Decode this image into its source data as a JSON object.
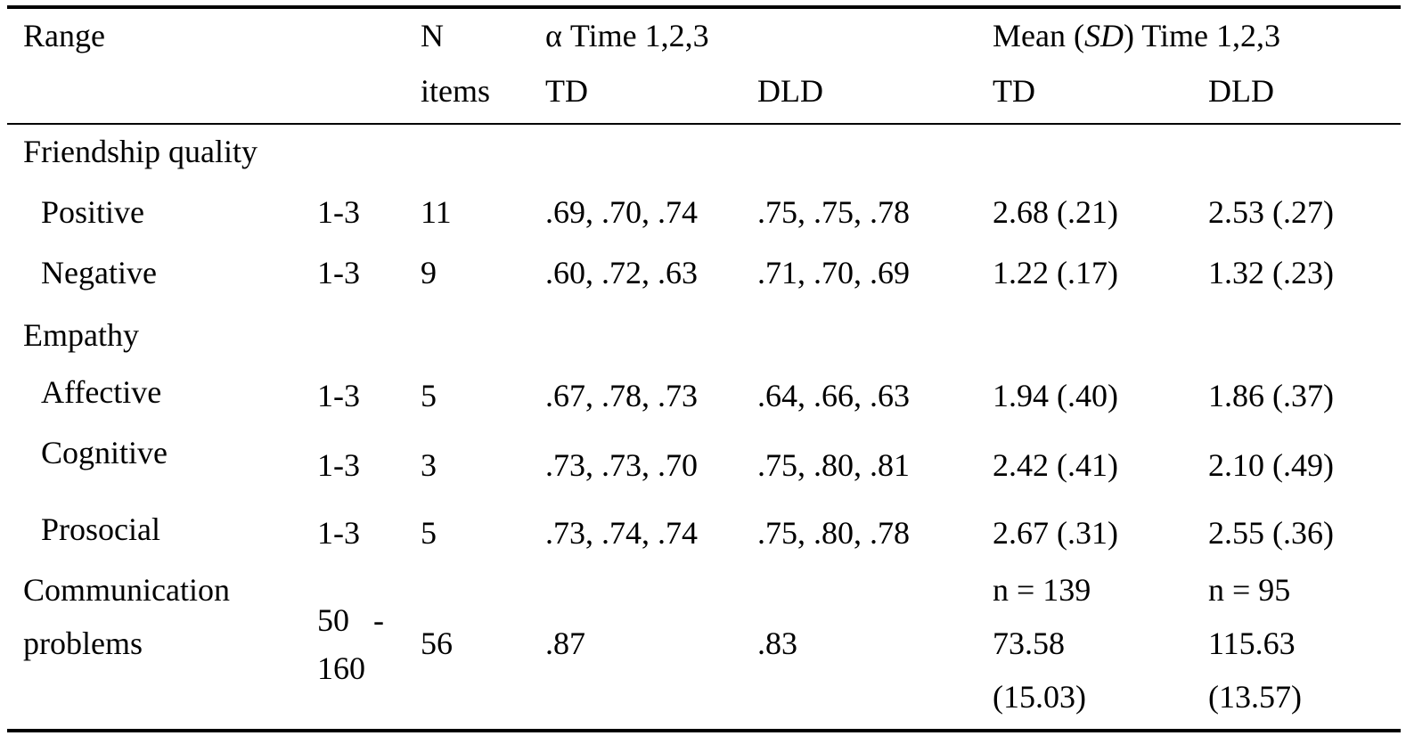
{
  "header": {
    "range": "Range",
    "n_items_line1": "N",
    "n_items_line2": "items",
    "alpha_prefix": "α Time 1,2,3",
    "mean_prefix": "Mean (",
    "mean_sd": "SD",
    "mean_suffix": ") Time 1,2,3",
    "alpha_td": "TD",
    "alpha_dld": "DLD",
    "mean_td": "TD",
    "mean_dld": "DLD"
  },
  "sections": {
    "friendship": "Friendship quality",
    "empathy": "Empathy"
  },
  "rows": [
    {
      "label": "Positive",
      "range": "1-3",
      "n": "11",
      "alpha_td": ".69, .70, .74",
      "alpha_dld": ".75, .75, .78",
      "mean_td": "2.68 (.21)",
      "mean_dld": "2.53 (.27)"
    },
    {
      "label": "Negative",
      "range": "1-3",
      "n": "9",
      "alpha_td": ".60, .72, .63",
      "alpha_dld": ".71, .70, .69",
      "mean_td": "1.22 (.17)",
      "mean_dld": "1.32 (.23)"
    },
    {
      "label": "Affective",
      "range": "1-3",
      "n": "5",
      "alpha_td": ".67, .78, .73",
      "alpha_dld": ".64, .66, .63",
      "mean_td": "1.94 (.40)",
      "mean_dld": "1.86 (.37)"
    },
    {
      "label": "Cognitive",
      "range": "1-3",
      "n": "3",
      "alpha_td": ".73, .73, .70",
      "alpha_dld": ".75, .80, .81",
      "mean_td": "2.42 (.41)",
      "mean_dld": "2.10 (.49)"
    },
    {
      "label": "Prosocial",
      "range": "1-3",
      "n": "5",
      "alpha_td": ".73, .74, .74",
      "alpha_dld": ".75, .80, .78",
      "mean_td": "2.67 (.31)",
      "mean_dld": "2.55 (.36)"
    }
  ],
  "communication": {
    "label_line1": "Communication",
    "label_line2": "problems",
    "range_line1": "50   -",
    "range_line2": "160",
    "n": "56",
    "alpha_td": ".87",
    "alpha_dld": ".83",
    "td_n": "n = 139",
    "td_mean": "73.58",
    "td_sd": "(15.03)",
    "dld_n": "n = 95",
    "dld_mean": "115.63",
    "dld_sd": "(13.57)"
  }
}
